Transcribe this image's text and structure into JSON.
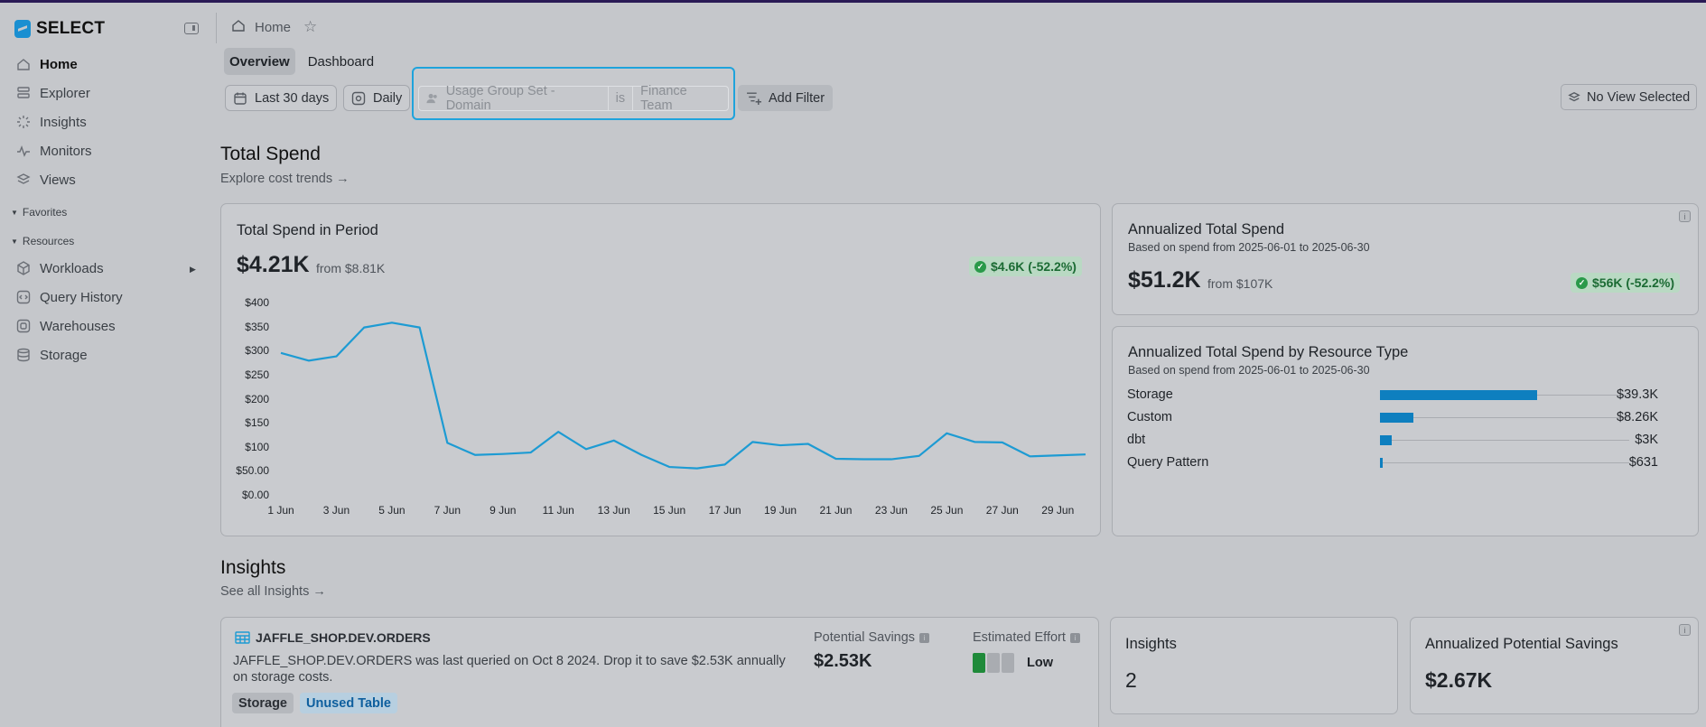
{
  "app": {
    "brand": "SELECT"
  },
  "sidebar": {
    "items": [
      {
        "label": "Home",
        "icon": "home-icon",
        "active": true
      },
      {
        "label": "Explorer",
        "icon": "explorer-icon"
      },
      {
        "label": "Insights",
        "icon": "insights-icon"
      },
      {
        "label": "Monitors",
        "icon": "monitors-icon"
      },
      {
        "label": "Views",
        "icon": "views-icon"
      }
    ],
    "favorites_label": "Favorites",
    "resources_label": "Resources",
    "resources": [
      {
        "label": "Workloads",
        "icon": "workloads-icon"
      },
      {
        "label": "Query History",
        "icon": "query-history-icon"
      },
      {
        "label": "Warehouses",
        "icon": "warehouses-icon"
      },
      {
        "label": "Storage",
        "icon": "storage-icon"
      }
    ]
  },
  "header": {
    "breadcrumb": "Home"
  },
  "tabs": [
    {
      "label": "Overview",
      "active": true
    },
    {
      "label": "Dashboard"
    }
  ],
  "filters": {
    "date_range": "Last 30 days",
    "granularity": "Daily",
    "filter_field": "Usage Group Set - Domain",
    "filter_op": "is",
    "filter_value": "Finance Team",
    "add_filter": "Add Filter",
    "view": "No View Selected"
  },
  "total_spend": {
    "heading": "Total Spend",
    "link": "Explore cost trends →",
    "period_card": {
      "title": "Total Spend in Period",
      "value": "$4.21K",
      "from": "from $8.81K",
      "delta": "$4.6K (-52.2%)"
    },
    "annualized_card": {
      "title": "Annualized Total Spend",
      "subtitle": "Based on spend from 2025-06-01 to 2025-06-30",
      "value": "$51.2K",
      "from": "from $107K",
      "delta": "$56K (-52.2%)"
    },
    "by_resource": {
      "title": "Annualized Total Spend by Resource Type",
      "subtitle": "Based on spend from 2025-06-01 to 2025-06-30",
      "rows": [
        {
          "label": "Storage",
          "value": "$39.3K",
          "fraction": 0.63
        },
        {
          "label": "Custom",
          "value": "$8.26K",
          "fraction": 0.133
        },
        {
          "label": "dbt",
          "value": "$3K",
          "fraction": 0.048
        },
        {
          "label": "Query Pattern",
          "value": "$631",
          "fraction": 0.01
        }
      ]
    }
  },
  "chart_data": {
    "type": "line",
    "ylim": [
      0,
      400
    ],
    "yticks": [
      "$400",
      "$350",
      "$300",
      "$250",
      "$200",
      "$150",
      "$100",
      "$50.00",
      "$0.00"
    ],
    "xticks": [
      "1 Jun",
      "3 Jun",
      "5 Jun",
      "7 Jun",
      "9 Jun",
      "11 Jun",
      "13 Jun",
      "15 Jun",
      "17 Jun",
      "19 Jun",
      "21 Jun",
      "23 Jun",
      "25 Jun",
      "27 Jun",
      "29 Jun"
    ],
    "x": [
      "1 Jun",
      "2 Jun",
      "3 Jun",
      "4 Jun",
      "5 Jun",
      "6 Jun",
      "7 Jun",
      "8 Jun",
      "9 Jun",
      "10 Jun",
      "11 Jun",
      "12 Jun",
      "13 Jun",
      "14 Jun",
      "15 Jun",
      "16 Jun",
      "17 Jun",
      "18 Jun",
      "19 Jun",
      "20 Jun",
      "21 Jun",
      "22 Jun",
      "23 Jun",
      "24 Jun",
      "25 Jun",
      "26 Jun",
      "27 Jun",
      "28 Jun",
      "29 Jun",
      "30 Jun"
    ],
    "series": [
      {
        "values": [
          297,
          281,
          290,
          350,
          360,
          350,
          110,
          85,
          87,
          90,
          133,
          97,
          115,
          85,
          60,
          57,
          65,
          112,
          105,
          108,
          77,
          76,
          76,
          83,
          130,
          112,
          111,
          82,
          84,
          86
        ]
      }
    ],
    "color": "#1d9bd3"
  },
  "insights": {
    "heading": "Insights",
    "link": "See all Insights →",
    "item": {
      "title": "JAFFLE_SHOP.DEV.ORDERS",
      "desc": "JAFFLE_SHOP.DEV.ORDERS was last queried on Oct 8 2024. Drop it to save $2.53K annually on storage costs.",
      "tags": [
        "Storage",
        "Unused Table"
      ],
      "savings_label": "Potential Savings",
      "savings_value": "$2.53K",
      "effort_label": "Estimated Effort",
      "effort_value": "Low",
      "effort_level": 1,
      "effort_max": 3
    },
    "count_card": {
      "title": "Insights",
      "value": "2"
    },
    "savings_card": {
      "title": "Annualized Potential Savings",
      "value": "$2.67K"
    }
  }
}
